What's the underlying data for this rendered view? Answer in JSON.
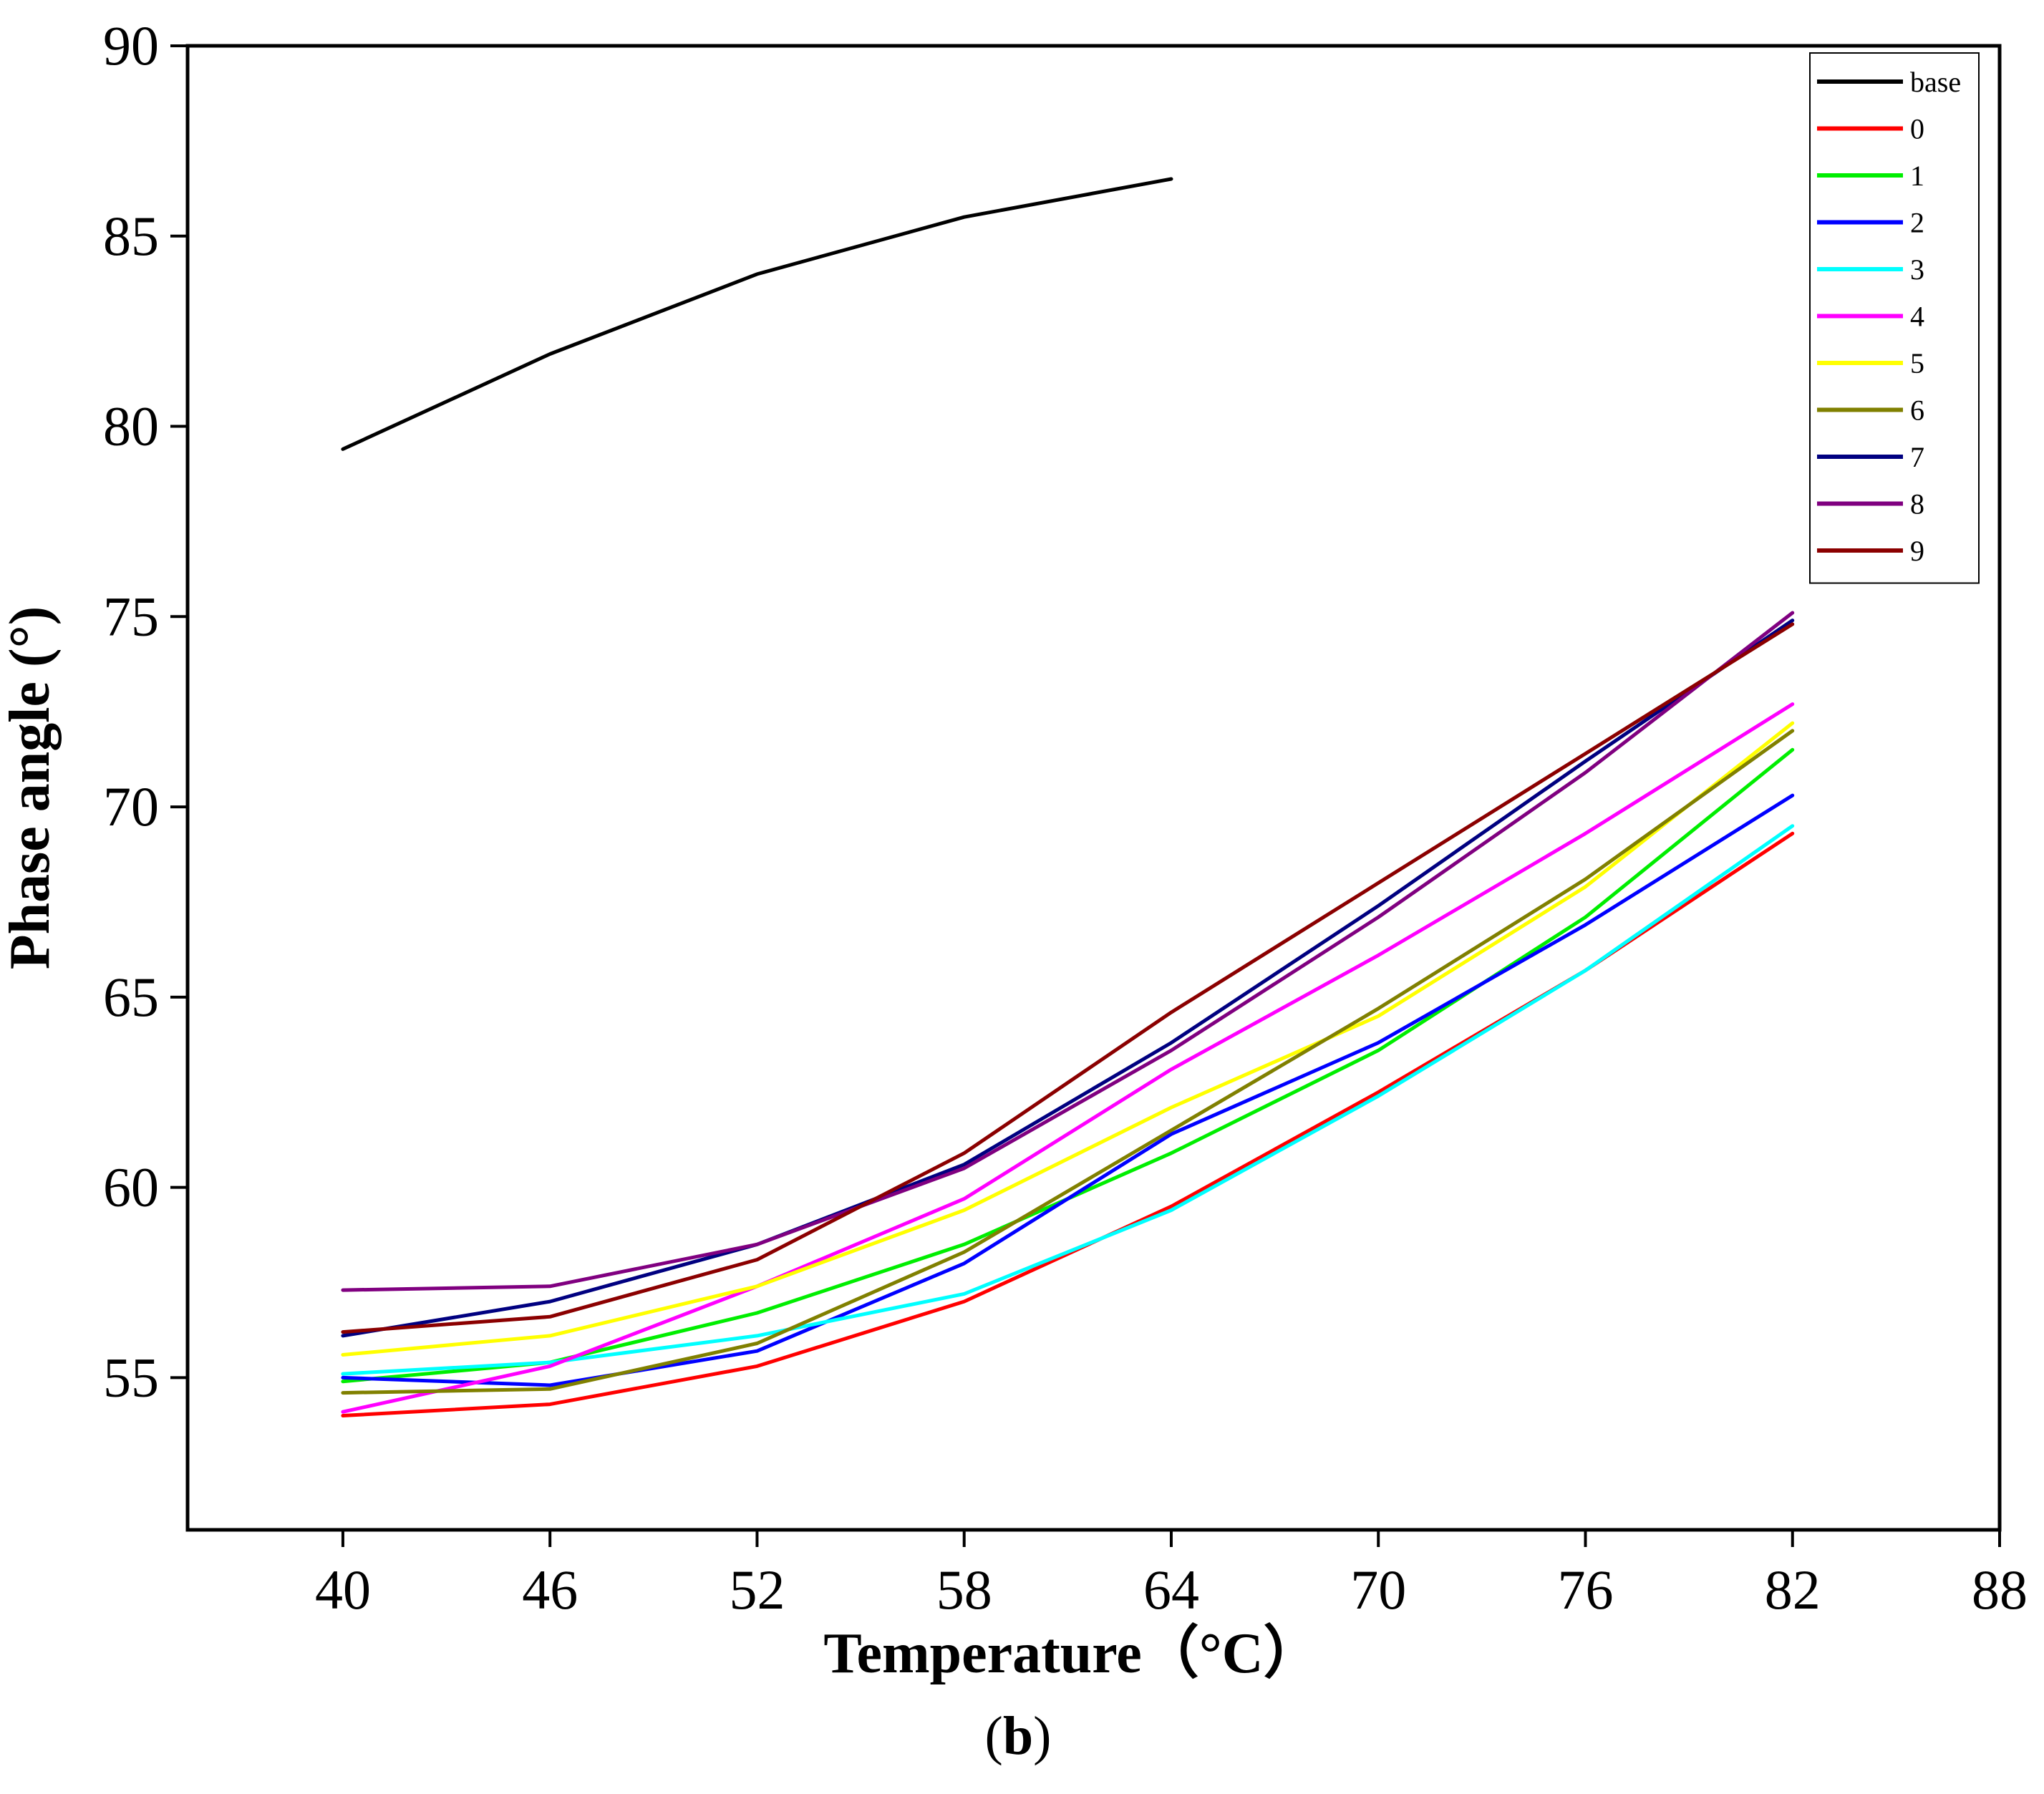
{
  "chart_data": {
    "type": "line",
    "xlabel": "Temperature（°C）",
    "ylabel": "Phase angle (°)",
    "xlim": [
      35.5,
      88
    ],
    "ylim": [
      51,
      90
    ],
    "x_ticks": [
      40,
      46,
      52,
      58,
      64,
      70,
      76,
      82,
      88
    ],
    "y_ticks": [
      55,
      60,
      65,
      70,
      75,
      80,
      85,
      90
    ],
    "legend_position": "top-right",
    "grid": false,
    "series": [
      {
        "name": "base",
        "color": "#000000",
        "x": [
          40,
          46,
          52,
          58,
          64
        ],
        "values": [
          79.4,
          81.9,
          84.0,
          85.5,
          86.5
        ]
      },
      {
        "name": "0",
        "color": "#ff0000",
        "x": [
          40,
          46,
          52,
          58,
          64,
          70,
          76,
          82
        ],
        "values": [
          54.0,
          54.3,
          55.3,
          57.0,
          59.5,
          62.5,
          65.7,
          69.3
        ]
      },
      {
        "name": "1",
        "color": "#00ee00",
        "x": [
          40,
          46,
          52,
          58,
          64,
          70,
          76,
          82
        ],
        "values": [
          54.9,
          55.4,
          56.7,
          58.5,
          60.9,
          63.6,
          67.1,
          71.5
        ]
      },
      {
        "name": "2",
        "color": "#0000ff",
        "x": [
          40,
          46,
          52,
          58,
          64,
          70,
          76,
          82
        ],
        "values": [
          55.0,
          54.8,
          55.7,
          58.0,
          61.4,
          63.8,
          66.9,
          70.3
        ]
      },
      {
        "name": "3",
        "color": "#00ffff",
        "x": [
          40,
          46,
          52,
          58,
          64,
          70,
          76,
          82
        ],
        "values": [
          55.1,
          55.4,
          56.1,
          57.2,
          59.4,
          62.4,
          65.7,
          69.5
        ]
      },
      {
        "name": "4",
        "color": "#ff00ff",
        "x": [
          40,
          46,
          52,
          58,
          64,
          70,
          76,
          82
        ],
        "values": [
          54.1,
          55.3,
          57.4,
          59.7,
          63.1,
          66.1,
          69.3,
          72.7
        ]
      },
      {
        "name": "5",
        "color": "#ffff00",
        "x": [
          40,
          46,
          52,
          58,
          64,
          70,
          76,
          82
        ],
        "values": [
          55.6,
          56.1,
          57.4,
          59.4,
          62.1,
          64.5,
          67.9,
          72.2
        ]
      },
      {
        "name": "6",
        "color": "#808000",
        "x": [
          40,
          46,
          52,
          58,
          64,
          70,
          76,
          82
        ],
        "values": [
          54.6,
          54.7,
          55.9,
          58.3,
          61.5,
          64.7,
          68.1,
          72.0
        ]
      },
      {
        "name": "7",
        "color": "#000080",
        "x": [
          40,
          46,
          52,
          58,
          64,
          70,
          76,
          82
        ],
        "values": [
          56.1,
          57.0,
          58.5,
          60.6,
          63.8,
          67.4,
          71.2,
          74.9
        ]
      },
      {
        "name": "8",
        "color": "#800080",
        "x": [
          40,
          46,
          52,
          58,
          64,
          70,
          76,
          82
        ],
        "values": [
          57.3,
          57.4,
          58.5,
          60.5,
          63.6,
          67.1,
          70.9,
          75.1
        ]
      },
      {
        "name": "9",
        "color": "#8b0000",
        "x": [
          40,
          46,
          52,
          58,
          64,
          70,
          76,
          82
        ],
        "values": [
          56.2,
          56.6,
          58.1,
          60.9,
          64.6,
          68.0,
          71.4,
          74.8
        ]
      }
    ]
  },
  "caption": {
    "open": "(",
    "letter": "b",
    "close": ")"
  }
}
